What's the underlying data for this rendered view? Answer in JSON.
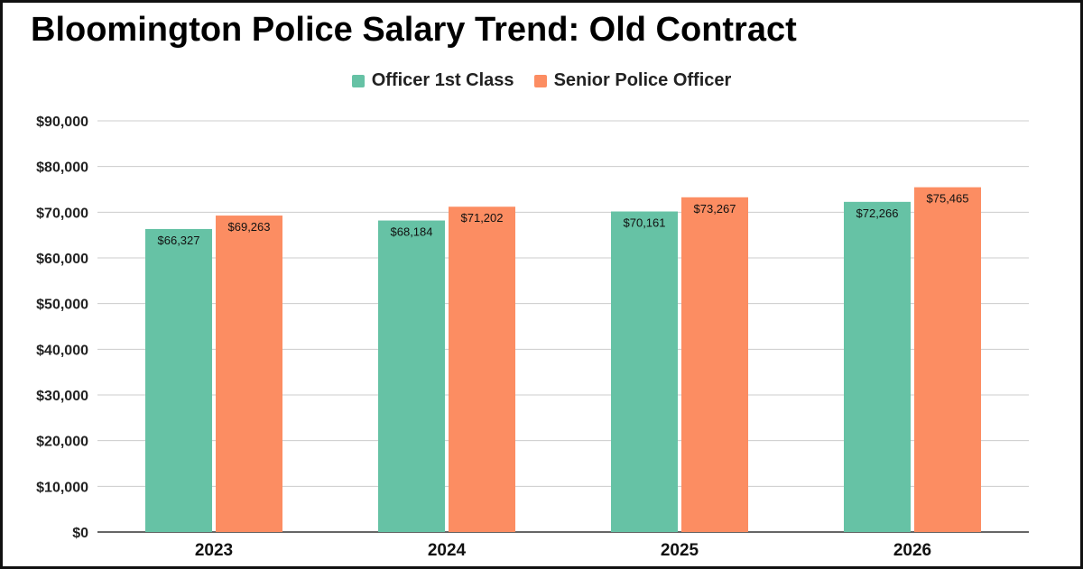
{
  "chart_data": {
    "type": "bar",
    "title": "Bloomington Police Salary Trend: Old Contract",
    "categories": [
      "2023",
      "2024",
      "2025",
      "2026"
    ],
    "series": [
      {
        "name": "Officer 1st Class",
        "color": "#66C2A5",
        "values": [
          66327,
          68184,
          70161,
          72266
        ],
        "labels": [
          "$66,327",
          "$68,184",
          "$70,161",
          "$72,266"
        ]
      },
      {
        "name": "Senior Police Officer",
        "color": "#FC8D62",
        "values": [
          69263,
          71202,
          73267,
          75465
        ],
        "labels": [
          "$69,263",
          "$71,202",
          "$73,267",
          "$75,465"
        ]
      }
    ],
    "ylim": [
      0,
      90000
    ],
    "yticks": [
      0,
      10000,
      20000,
      30000,
      40000,
      50000,
      60000,
      70000,
      80000,
      90000
    ],
    "ytick_labels": [
      "$0",
      "$10,000",
      "$20,000",
      "$30,000",
      "$40,000",
      "$50,000",
      "$60,000",
      "$70,000",
      "$80,000",
      "$90,000"
    ],
    "xlabel": "",
    "ylabel": "",
    "grid": true,
    "legend_position": "top-center"
  }
}
